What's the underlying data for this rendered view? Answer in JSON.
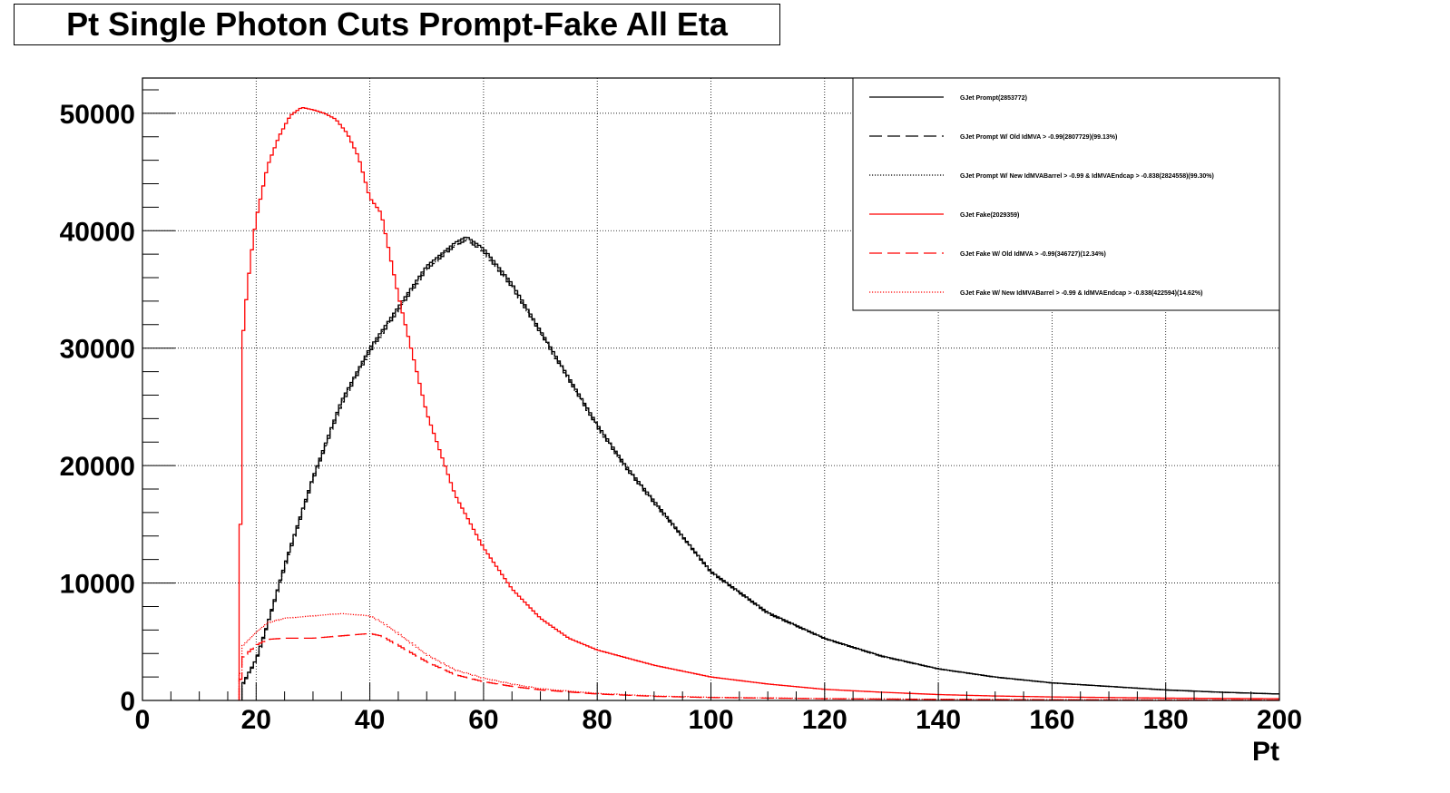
{
  "chart_data": {
    "type": "line",
    "title": "Pt Single Photon Cuts Prompt-Fake All Eta",
    "xlabel": "Pt",
    "ylabel": "",
    "xlim": [
      0,
      200
    ],
    "ylim": [
      0,
      53000
    ],
    "x_ticks": [
      "0",
      "20",
      "40",
      "60",
      "80",
      "100",
      "120",
      "140",
      "160",
      "180",
      "200"
    ],
    "y_ticks": [
      "0",
      "10000",
      "20000",
      "30000",
      "40000",
      "50000"
    ],
    "grid": true,
    "legend_position": "top-right",
    "colors": {
      "prompt": "#000000",
      "fake": "#ff0000"
    },
    "series": [
      {
        "name": "GJet Prompt(2853772)",
        "color": "#000000",
        "style": "solid",
        "x": [
          17.5,
          20,
          22,
          25,
          30,
          35,
          40,
          45,
          50,
          55,
          57,
          60,
          65,
          70,
          75,
          80,
          85,
          90,
          95,
          100,
          110,
          120,
          130,
          140,
          150,
          160,
          170,
          180,
          190,
          200
        ],
        "y": [
          1300,
          3500,
          6500,
          11500,
          19000,
          25500,
          30000,
          33500,
          37000,
          39000,
          39500,
          38500,
          35500,
          31500,
          27500,
          23500,
          20000,
          17000,
          14000,
          11000,
          7500,
          5300,
          3800,
          2700,
          2000,
          1500,
          1200,
          900,
          700,
          550
        ]
      },
      {
        "name": "GJet Prompt W/ Old IdMVA > -0.99(2807729)(99.13%)",
        "color": "#000000",
        "style": "dashed",
        "x": [
          17.5,
          20,
          22,
          25,
          30,
          35,
          40,
          45,
          50,
          55,
          57,
          60,
          65,
          70,
          75,
          80,
          85,
          90,
          95,
          100,
          110,
          120,
          130,
          140,
          150,
          160,
          170,
          180,
          190,
          200
        ],
        "y": [
          1200,
          3400,
          6400,
          11300,
          18800,
          25200,
          29700,
          33200,
          36700,
          38700,
          39200,
          38200,
          35200,
          31300,
          27300,
          23300,
          19800,
          16800,
          13900,
          10900,
          7400,
          5250,
          3750,
          2680,
          1980,
          1490,
          1190,
          890,
          690,
          545
        ]
      },
      {
        "name": "GJet Prompt W/ New IdMVABarrel > -0.99 & IdMVAEndcap > -0.838(2824558)(99.30%)",
        "color": "#000000",
        "style": "dotted",
        "x": [
          17.5,
          20,
          22,
          25,
          30,
          35,
          40,
          45,
          50,
          55,
          57,
          60,
          65,
          70,
          75,
          80,
          85,
          90,
          95,
          100,
          110,
          120,
          130,
          140,
          150,
          160,
          170,
          180,
          190,
          200
        ],
        "y": [
          1250,
          3450,
          6450,
          11400,
          18900,
          25350,
          29850,
          33350,
          36850,
          38850,
          39350,
          38350,
          35350,
          31400,
          27400,
          23400,
          19900,
          16900,
          13950,
          10950,
          7450,
          5280,
          3780,
          2690,
          1990,
          1495,
          1195,
          895,
          695,
          548
        ]
      },
      {
        "name": "GJet Fake(2029359)",
        "color": "#ff0000",
        "style": "solid",
        "x": [
          17,
          17.5,
          18,
          19,
          20,
          22,
          24,
          26,
          28,
          30,
          32,
          34,
          36,
          38,
          40,
          42,
          45,
          50,
          55,
          60,
          65,
          70,
          75,
          80,
          90,
          100,
          110,
          120,
          130,
          140,
          150,
          160,
          180,
          200
        ],
        "y": [
          0,
          30000,
          33000,
          37500,
          41000,
          45500,
          48000,
          49800,
          50500,
          50300,
          50000,
          49500,
          48300,
          46300,
          42800,
          41500,
          34500,
          24500,
          17500,
          13000,
          9500,
          7000,
          5300,
          4300,
          3000,
          2000,
          1400,
          950,
          700,
          500,
          380,
          300,
          200,
          150
        ]
      },
      {
        "name": "GJet Fake W/ Old IdMVA > -0.99(346727)(12.34%)",
        "color": "#ff0000",
        "style": "dashed",
        "x": [
          17,
          17.5,
          20,
          22,
          25,
          30,
          35,
          40,
          42,
          45,
          50,
          55,
          60,
          65,
          70,
          80,
          90,
          100,
          120,
          140,
          160,
          180,
          200
        ],
        "y": [
          0,
          3600,
          4700,
          5200,
          5300,
          5300,
          5500,
          5700,
          5500,
          4700,
          3300,
          2200,
          1600,
          1200,
          900,
          550,
          350,
          250,
          150,
          90,
          60,
          40,
          30
        ]
      },
      {
        "name": "GJet Fake W/ New IdMVABarrel > -0.99 & IdMVAEndcap > -0.838(422594)(14.62%)",
        "color": "#ff0000",
        "style": "dotted",
        "x": [
          17,
          17.5,
          20,
          22,
          25,
          30,
          35,
          40,
          42,
          45,
          50,
          55,
          60,
          65,
          70,
          80,
          90,
          100,
          120,
          140,
          160,
          180,
          200
        ],
        "y": [
          0,
          4600,
          5800,
          6600,
          7000,
          7200,
          7400,
          7200,
          6700,
          5700,
          3900,
          2600,
          1900,
          1400,
          1000,
          600,
          380,
          270,
          160,
          100,
          65,
          45,
          32
        ]
      }
    ]
  }
}
